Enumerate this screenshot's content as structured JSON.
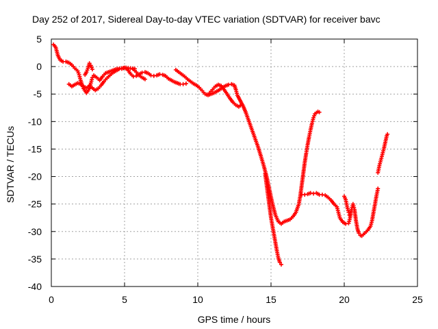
{
  "chart_data": {
    "type": "scatter",
    "title": "Day 252 of 2017, Sidereal Day-to-day VTEC variation (SDTVAR) for receiver bavc",
    "xlabel": "GPS time / hours",
    "ylabel": "SDTVAR / TECUs",
    "xlim": [
      0,
      25
    ],
    "ylim": [
      -40,
      5
    ],
    "xticks": [
      0,
      5,
      10,
      15,
      20,
      25
    ],
    "yticks": [
      5,
      0,
      -5,
      -10,
      -15,
      -20,
      -25,
      -30,
      -35,
      -40
    ],
    "grid": true,
    "marker": "+",
    "color": "#ff0000",
    "series": [
      {
        "name": "trace1",
        "points": [
          [
            0.15,
            4.0
          ],
          [
            0.3,
            3.5
          ],
          [
            0.45,
            2.0
          ],
          [
            0.6,
            1.2
          ],
          [
            0.8,
            0.9
          ],
          [
            1.0,
            0.9
          ],
          [
            1.2,
            0.7
          ],
          [
            1.4,
            0.3
          ],
          [
            1.6,
            -0.3
          ],
          [
            1.8,
            -0.8
          ],
          [
            1.9,
            -1.5
          ],
          [
            2.0,
            -2.5
          ],
          [
            2.1,
            -3.3
          ],
          [
            2.2,
            -4.0
          ],
          [
            2.4,
            -4.8
          ],
          [
            2.6,
            -4.0
          ],
          [
            2.7,
            -3.0
          ],
          [
            2.8,
            -2.0
          ],
          [
            2.9,
            -1.6
          ],
          [
            3.1,
            -2.0
          ],
          [
            3.3,
            -2.5
          ],
          [
            3.5,
            -1.8
          ],
          [
            3.7,
            -1.2
          ],
          [
            3.9,
            -1.0
          ],
          [
            4.2,
            -0.7
          ],
          [
            4.5,
            -0.4
          ],
          [
            4.8,
            -0.3
          ],
          [
            5.1,
            -0.2
          ],
          [
            5.4,
            -0.3
          ],
          [
            5.7,
            -0.4
          ]
        ]
      },
      {
        "name": "trace2",
        "points": [
          [
            1.2,
            -3.2
          ],
          [
            1.4,
            -3.6
          ],
          [
            1.6,
            -3.3
          ],
          [
            1.8,
            -3.0
          ],
          [
            2.0,
            -3.2
          ],
          [
            2.2,
            -3.6
          ],
          [
            2.4,
            -3.9
          ],
          [
            2.6,
            -3.5
          ],
          [
            2.8,
            -3.9
          ],
          [
            3.0,
            -4.3
          ],
          [
            3.2,
            -4.0
          ],
          [
            3.4,
            -3.4
          ],
          [
            3.6,
            -2.7
          ],
          [
            3.8,
            -2.1
          ],
          [
            4.0,
            -1.6
          ],
          [
            4.2,
            -1.1
          ],
          [
            4.4,
            -0.8
          ],
          [
            4.6,
            -0.5
          ],
          [
            4.8,
            -0.4
          ],
          [
            5.0,
            -0.2
          ],
          [
            5.2,
            -0.5
          ],
          [
            5.4,
            -1.3
          ],
          [
            5.6,
            -1.8
          ],
          [
            5.8,
            -1.7
          ],
          [
            6.0,
            -1.4
          ],
          [
            6.2,
            -1.1
          ],
          [
            6.4,
            -1.0
          ],
          [
            6.6,
            -1.2
          ],
          [
            6.8,
            -1.6
          ],
          [
            7.0,
            -1.7
          ],
          [
            7.2,
            -1.6
          ],
          [
            7.4,
            -1.4
          ],
          [
            7.6,
            -1.5
          ],
          [
            7.8,
            -1.7
          ],
          [
            8.0,
            -2.2
          ],
          [
            8.2,
            -2.5
          ],
          [
            8.4,
            -2.8
          ],
          [
            8.6,
            -3.0
          ],
          [
            8.8,
            -3.2
          ],
          [
            9.0,
            -3.2
          ],
          [
            9.2,
            -3.1
          ]
        ]
      },
      {
        "name": "trace3",
        "points": [
          [
            2.3,
            -1.5
          ],
          [
            2.4,
            -1.0
          ],
          [
            2.5,
            -0.3
          ],
          [
            2.6,
            0.6
          ],
          [
            2.7,
            0.2
          ],
          [
            2.8,
            -0.5
          ]
        ]
      },
      {
        "name": "trace4",
        "points": [
          [
            5.6,
            -0.5
          ],
          [
            5.8,
            -1.0
          ],
          [
            6.0,
            -1.6
          ],
          [
            6.2,
            -2.0
          ],
          [
            6.4,
            -2.3
          ]
        ]
      },
      {
        "name": "trace5",
        "points": [
          [
            8.5,
            -0.6
          ],
          [
            8.7,
            -1.0
          ],
          [
            8.9,
            -1.4
          ],
          [
            9.1,
            -1.8
          ],
          [
            9.3,
            -2.3
          ],
          [
            9.5,
            -2.7
          ],
          [
            9.7,
            -3.1
          ],
          [
            9.9,
            -3.4
          ],
          [
            10.1,
            -3.8
          ],
          [
            10.3,
            -4.4
          ],
          [
            10.5,
            -5.0
          ],
          [
            10.7,
            -5.2
          ],
          [
            10.9,
            -5.0
          ],
          [
            11.1,
            -4.8
          ],
          [
            11.3,
            -4.5
          ],
          [
            11.5,
            -4.2
          ],
          [
            11.7,
            -3.8
          ],
          [
            11.9,
            -3.5
          ],
          [
            12.1,
            -3.3
          ],
          [
            12.3,
            -3.2
          ],
          [
            12.5,
            -3.4
          ],
          [
            12.6,
            -4.2
          ],
          [
            12.7,
            -5.2
          ],
          [
            12.9,
            -6.2
          ],
          [
            13.1,
            -7.2
          ],
          [
            13.3,
            -8.5
          ],
          [
            13.5,
            -10.0
          ],
          [
            13.7,
            -11.5
          ],
          [
            13.9,
            -13.0
          ],
          [
            14.1,
            -14.5
          ],
          [
            14.3,
            -16.2
          ],
          [
            14.5,
            -18.0
          ],
          [
            14.7,
            -20.0
          ],
          [
            14.9,
            -22.5
          ],
          [
            15.1,
            -25.0
          ],
          [
            15.3,
            -27.0
          ],
          [
            15.5,
            -28.2
          ],
          [
            15.7,
            -28.6
          ],
          [
            15.9,
            -28.2
          ],
          [
            16.1,
            -28.0
          ],
          [
            16.3,
            -27.8
          ],
          [
            16.5,
            -27.3
          ],
          [
            16.7,
            -26.5
          ],
          [
            16.9,
            -25.0
          ],
          [
            17.0,
            -23.5
          ],
          [
            17.1,
            -21.5
          ],
          [
            17.2,
            -19.5
          ],
          [
            17.3,
            -17.5
          ],
          [
            17.4,
            -15.8
          ],
          [
            17.5,
            -14.2
          ],
          [
            17.6,
            -12.8
          ],
          [
            17.7,
            -11.5
          ],
          [
            17.8,
            -10.3
          ],
          [
            17.9,
            -9.3
          ],
          [
            18.0,
            -8.6
          ],
          [
            18.2,
            -8.2
          ],
          [
            18.3,
            -8.3
          ]
        ]
      },
      {
        "name": "trace6",
        "points": [
          [
            10.8,
            -4.8
          ],
          [
            11.0,
            -4.2
          ],
          [
            11.2,
            -3.6
          ],
          [
            11.4,
            -3.3
          ],
          [
            11.6,
            -3.5
          ],
          [
            11.8,
            -4.2
          ],
          [
            12.0,
            -5.0
          ],
          [
            12.2,
            -5.8
          ],
          [
            12.4,
            -6.5
          ],
          [
            12.6,
            -7.0
          ],
          [
            12.8,
            -7.3
          ],
          [
            12.9,
            -7.1
          ]
        ]
      },
      {
        "name": "trace7",
        "points": [
          [
            14.6,
            -19.5
          ],
          [
            14.7,
            -21.5
          ],
          [
            14.8,
            -23.5
          ],
          [
            14.9,
            -25.5
          ],
          [
            15.0,
            -27.5
          ],
          [
            15.1,
            -29.0
          ],
          [
            15.2,
            -30.5
          ],
          [
            15.3,
            -32.0
          ],
          [
            15.4,
            -33.5
          ],
          [
            15.5,
            -34.8
          ],
          [
            15.6,
            -35.6
          ],
          [
            15.7,
            -36.0
          ]
        ]
      },
      {
        "name": "trace8",
        "points": [
          [
            17.1,
            -23.3
          ],
          [
            17.3,
            -23.3
          ],
          [
            17.5,
            -23.2
          ],
          [
            17.7,
            -23.0
          ],
          [
            17.9,
            -23.1
          ],
          [
            18.1,
            -23.0
          ],
          [
            18.3,
            -23.3
          ],
          [
            18.5,
            -23.3
          ],
          [
            18.7,
            -23.4
          ],
          [
            18.9,
            -23.8
          ],
          [
            19.1,
            -24.3
          ],
          [
            19.3,
            -25.0
          ],
          [
            19.5,
            -25.5
          ],
          [
            19.6,
            -26.5
          ],
          [
            19.7,
            -27.5
          ],
          [
            19.9,
            -28.3
          ],
          [
            20.1,
            -28.6
          ],
          [
            20.3,
            -28.5
          ],
          [
            20.4,
            -27.5
          ],
          [
            20.5,
            -26.0
          ],
          [
            20.6,
            -25.0
          ],
          [
            20.7,
            -26.0
          ],
          [
            20.8,
            -28.0
          ],
          [
            20.9,
            -29.5
          ],
          [
            21.0,
            -30.3
          ],
          [
            21.1,
            -30.7
          ],
          [
            21.2,
            -30.8
          ],
          [
            21.4,
            -30.3
          ],
          [
            21.6,
            -29.8
          ],
          [
            21.8,
            -29.0
          ],
          [
            21.9,
            -28.0
          ],
          [
            22.0,
            -26.5
          ],
          [
            22.1,
            -25.0
          ],
          [
            22.2,
            -23.5
          ],
          [
            22.3,
            -22.2
          ]
        ]
      },
      {
        "name": "trace9",
        "points": [
          [
            20.0,
            -23.6
          ],
          [
            20.1,
            -24.2
          ],
          [
            20.2,
            -25.5
          ],
          [
            20.3,
            -26.5
          ],
          [
            20.35,
            -27.0
          ]
        ]
      },
      {
        "name": "trace10",
        "points": [
          [
            22.3,
            -19.3
          ],
          [
            22.4,
            -18.0
          ],
          [
            22.5,
            -17.0
          ],
          [
            22.6,
            -16.0
          ],
          [
            22.7,
            -15.0
          ],
          [
            22.8,
            -13.8
          ],
          [
            22.9,
            -12.6
          ],
          [
            22.95,
            -12.3
          ]
        ]
      }
    ]
  }
}
